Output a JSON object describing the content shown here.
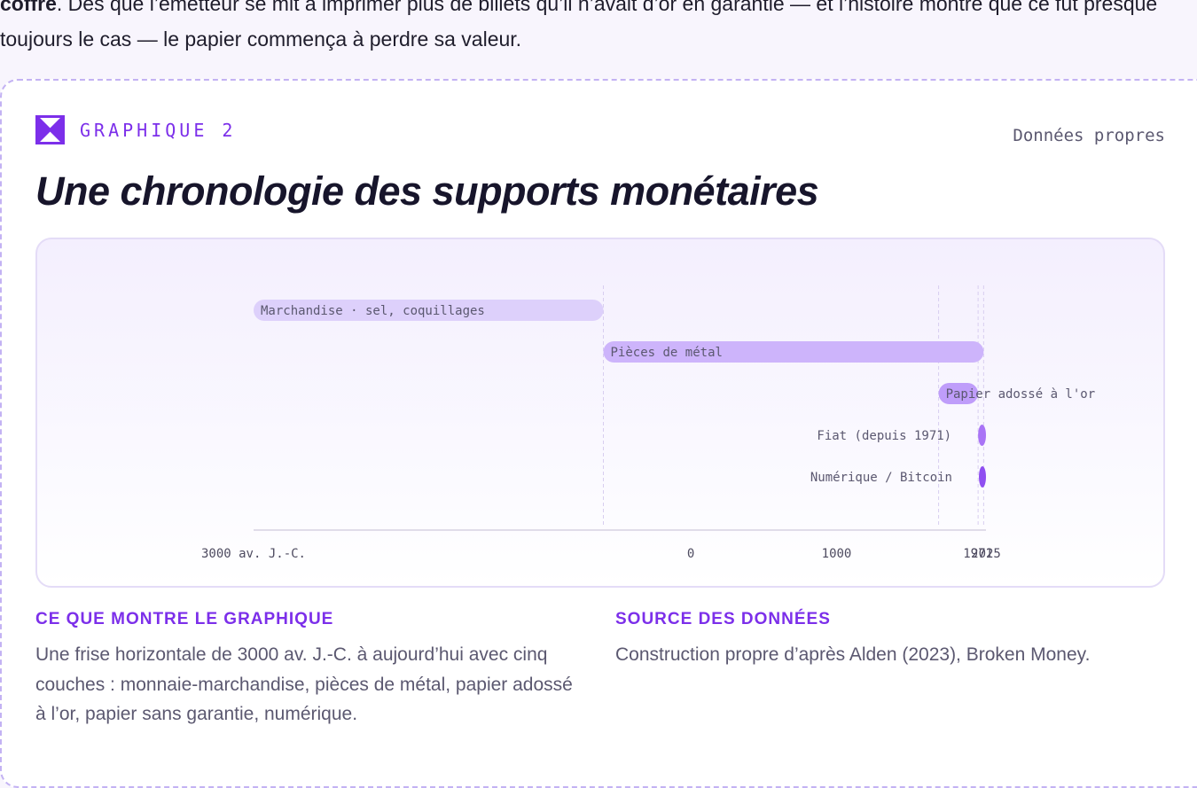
{
  "article": {
    "intro_strong": "coffre",
    "intro_rest": ". Dès que l’émetteur se mit à imprimer plus de billets qu’il n’avait d’or en garantie — et l’histoire montre que ce fut presque toujours le cas — le papier commença à perdre sa valeur."
  },
  "figure": {
    "label": "GRAPHIQUE 2",
    "source_tag": "Données propres",
    "title": "Une chronologie des supports monétaires",
    "accent_color": "#7c2fea",
    "bar_colors": [
      "#ddd0fb",
      "#cdb4fb",
      "#bf9dfa",
      "#a974f6",
      "#8f4ff1"
    ],
    "what_heading": "CE QUE MONTRE LE GRAPHIQUE",
    "what_text": "Une frise horizontale de 3000 av. J.-C. à aujourd’hui avec cinq couches : monnaie-marchandise, pièces de métal, papier adossé à l’or, papier sans garantie, numérique.",
    "source_heading": "SOURCE DES DONNÉES",
    "source_text": "Construction propre d’après Alden (2023), Broken Money."
  },
  "chart_data": {
    "type": "timeline",
    "title": "Une chronologie des supports monétaires",
    "x_range": [
      -3000,
      2025
    ],
    "x_ticks": [
      {
        "value": -3000,
        "label": "3000 av. J.-C."
      },
      {
        "value": 0,
        "label": "0"
      },
      {
        "value": 1000,
        "label": "1000"
      },
      {
        "value": 1971,
        "label": "1971"
      },
      {
        "value": 2025,
        "label": "2025"
      }
    ],
    "reference_lines": [
      -600,
      1700,
      1971,
      2009
    ],
    "series": [
      {
        "name": "Marchandise · sel, coquillages",
        "start": -3000,
        "end": -600,
        "label_position": "inside"
      },
      {
        "name": "Pièces de métal",
        "start": -600,
        "end": 2009,
        "label_position": "inside"
      },
      {
        "name": "Papier adossé à l'or",
        "start": 1700,
        "end": 1971,
        "label_position": "inside"
      },
      {
        "name": "Fiat (depuis 1971)",
        "start": 1971,
        "end": 2025,
        "label_position": "left"
      },
      {
        "name": "Numérique / Bitcoin",
        "start": 2009,
        "end": 2025,
        "label_position": "left"
      }
    ]
  }
}
